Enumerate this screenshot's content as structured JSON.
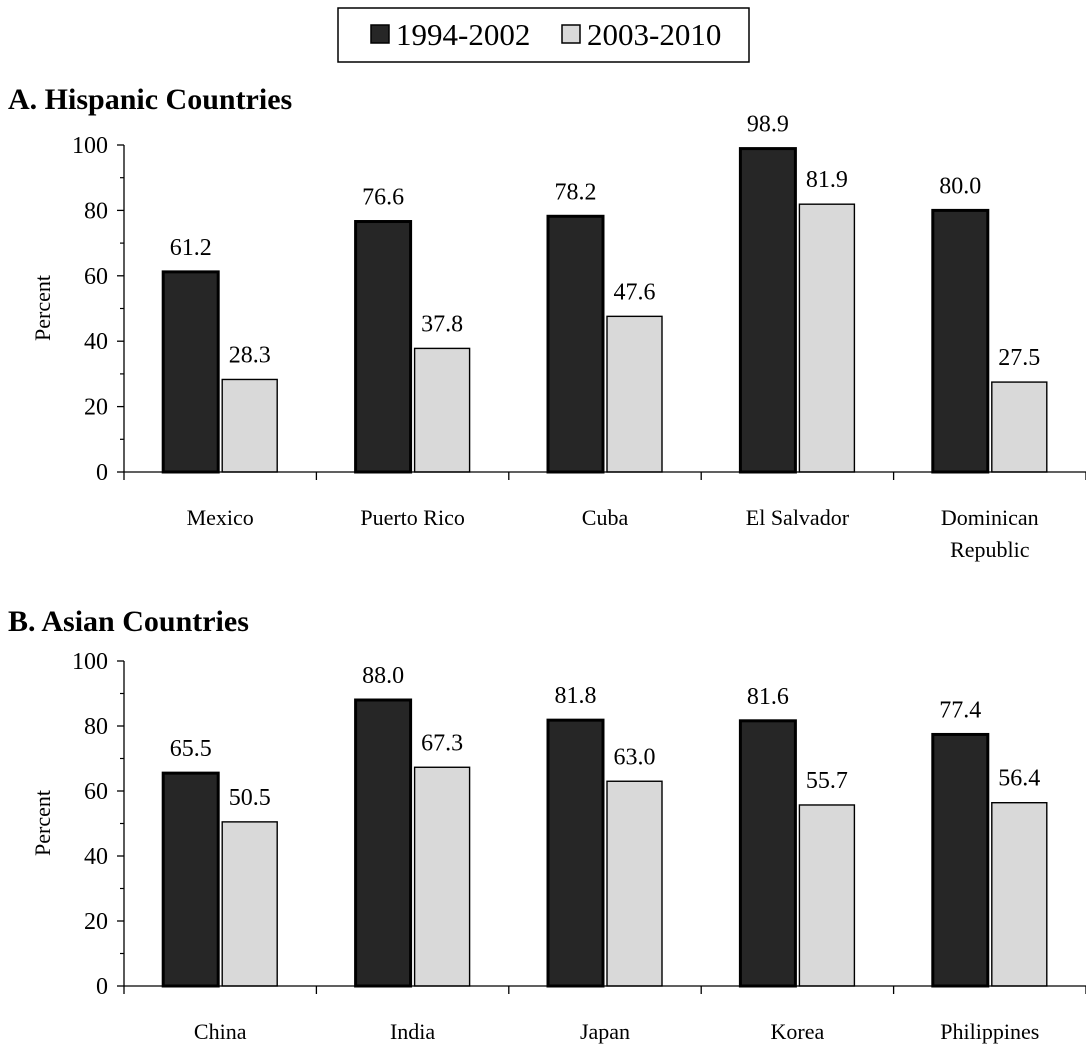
{
  "legend": {
    "items": [
      {
        "label": "1994-2002",
        "color": "#262626"
      },
      {
        "label": "2003-2010",
        "color": "#d9d9d9"
      }
    ]
  },
  "chart_data": [
    {
      "type": "bar",
      "title": "A. Hispanic Countries",
      "ylabel": "Percent",
      "ylim": [
        0,
        100
      ],
      "yticks": [
        0,
        20,
        40,
        60,
        80,
        100
      ],
      "categories": [
        [
          "Mexico"
        ],
        [
          "Puerto Rico"
        ],
        [
          "Cuba"
        ],
        [
          "El Salvador"
        ],
        [
          "Dominican",
          "Republic"
        ]
      ],
      "series": [
        {
          "name": "1994-2002",
          "values": [
            61.2,
            76.6,
            78.2,
            98.9,
            80.0
          ],
          "labels": [
            "61.2",
            "76.6",
            "78.2",
            "98.9",
            "80.0"
          ]
        },
        {
          "name": "2003-2010",
          "values": [
            28.3,
            37.8,
            47.6,
            81.9,
            27.5
          ],
          "labels": [
            "28.3",
            "37.8",
            "47.6",
            "81.9",
            "27.5"
          ]
        }
      ],
      "grid": false
    },
    {
      "type": "bar",
      "title": "B. Asian Countries",
      "ylabel": "Percent",
      "ylim": [
        0,
        100
      ],
      "yticks": [
        0,
        20,
        40,
        60,
        80,
        100
      ],
      "categories": [
        [
          "China"
        ],
        [
          "India"
        ],
        [
          "Japan"
        ],
        [
          "Korea"
        ],
        [
          "Philippines"
        ]
      ],
      "series": [
        {
          "name": "1994-2002",
          "values": [
            65.5,
            88.0,
            81.8,
            81.6,
            77.4
          ],
          "labels": [
            "65.5",
            "88.0",
            "81.8",
            "81.6",
            "77.4"
          ]
        },
        {
          "name": "2003-2010",
          "values": [
            50.5,
            67.3,
            63.0,
            55.7,
            56.4
          ],
          "labels": [
            "50.5",
            "67.3",
            "63.0",
            "55.7",
            "56.4"
          ]
        }
      ],
      "grid": false
    }
  ]
}
